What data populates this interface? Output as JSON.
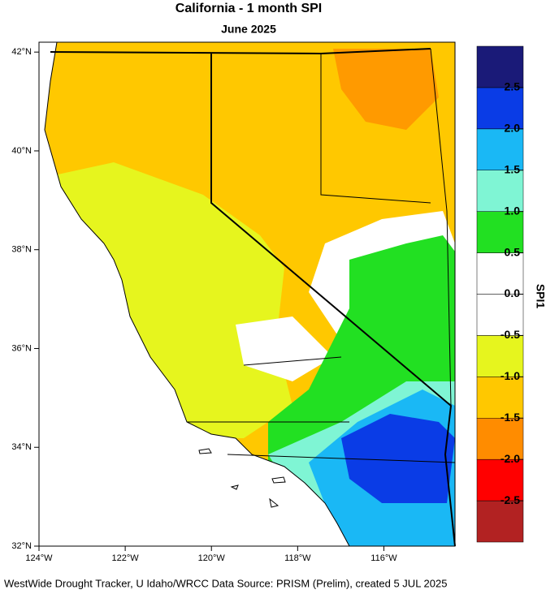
{
  "header": {
    "title": "California - 1 month SPI",
    "subtitle": "June 2025"
  },
  "map": {
    "lat_ticks": [
      {
        "value": 42,
        "label": "42°N"
      },
      {
        "value": 40,
        "label": "40°N"
      },
      {
        "value": 38,
        "label": "38°N"
      },
      {
        "value": 36,
        "label": "36°N"
      },
      {
        "value": 34,
        "label": "34°N"
      },
      {
        "value": 32,
        "label": "32°N"
      }
    ],
    "lon_ticks": [
      {
        "value": -124,
        "label": "124°W"
      },
      {
        "value": -122,
        "label": "122°W"
      },
      {
        "value": -120,
        "label": "120°W"
      },
      {
        "value": -118,
        "label": "118°W"
      },
      {
        "value": -116,
        "label": "116°W"
      }
    ],
    "lat_range": [
      32,
      42.2
    ],
    "lon_range": [
      -124,
      -114.35
    ]
  },
  "colorbar": {
    "title": "SPI1",
    "bins": [
      -3,
      -2.5,
      -2,
      -1.5,
      -1,
      -0.5,
      0,
      0.5,
      1,
      1.5,
      2,
      2.5,
      3
    ],
    "colors": [
      "#b22222",
      "#ff0000",
      "#ff8c00",
      "#ffc800",
      "#e6f51e",
      "#ffffff",
      "#ffffff",
      "#22e022",
      "#7ff5d4",
      "#1ab8f5",
      "#0a3ce6",
      "#1a1a78"
    ],
    "ticks": [
      -2.5,
      {
        "value": -2,
        "label": "-2.0"
      },
      -1.5,
      {
        "value": -1,
        "label": "-1.0"
      },
      -0.5,
      {
        "value": 0,
        "label": "0.0"
      },
      0.5,
      {
        "value": 1,
        "label": "1.0"
      },
      1.5,
      {
        "value": 2,
        "label": "2.0"
      },
      2.5
    ]
  },
  "footer": "WestWide Drought Tracker, U Idaho/WRCC Data Source: PRISM (Prelim), created  5 JUL 2025"
}
